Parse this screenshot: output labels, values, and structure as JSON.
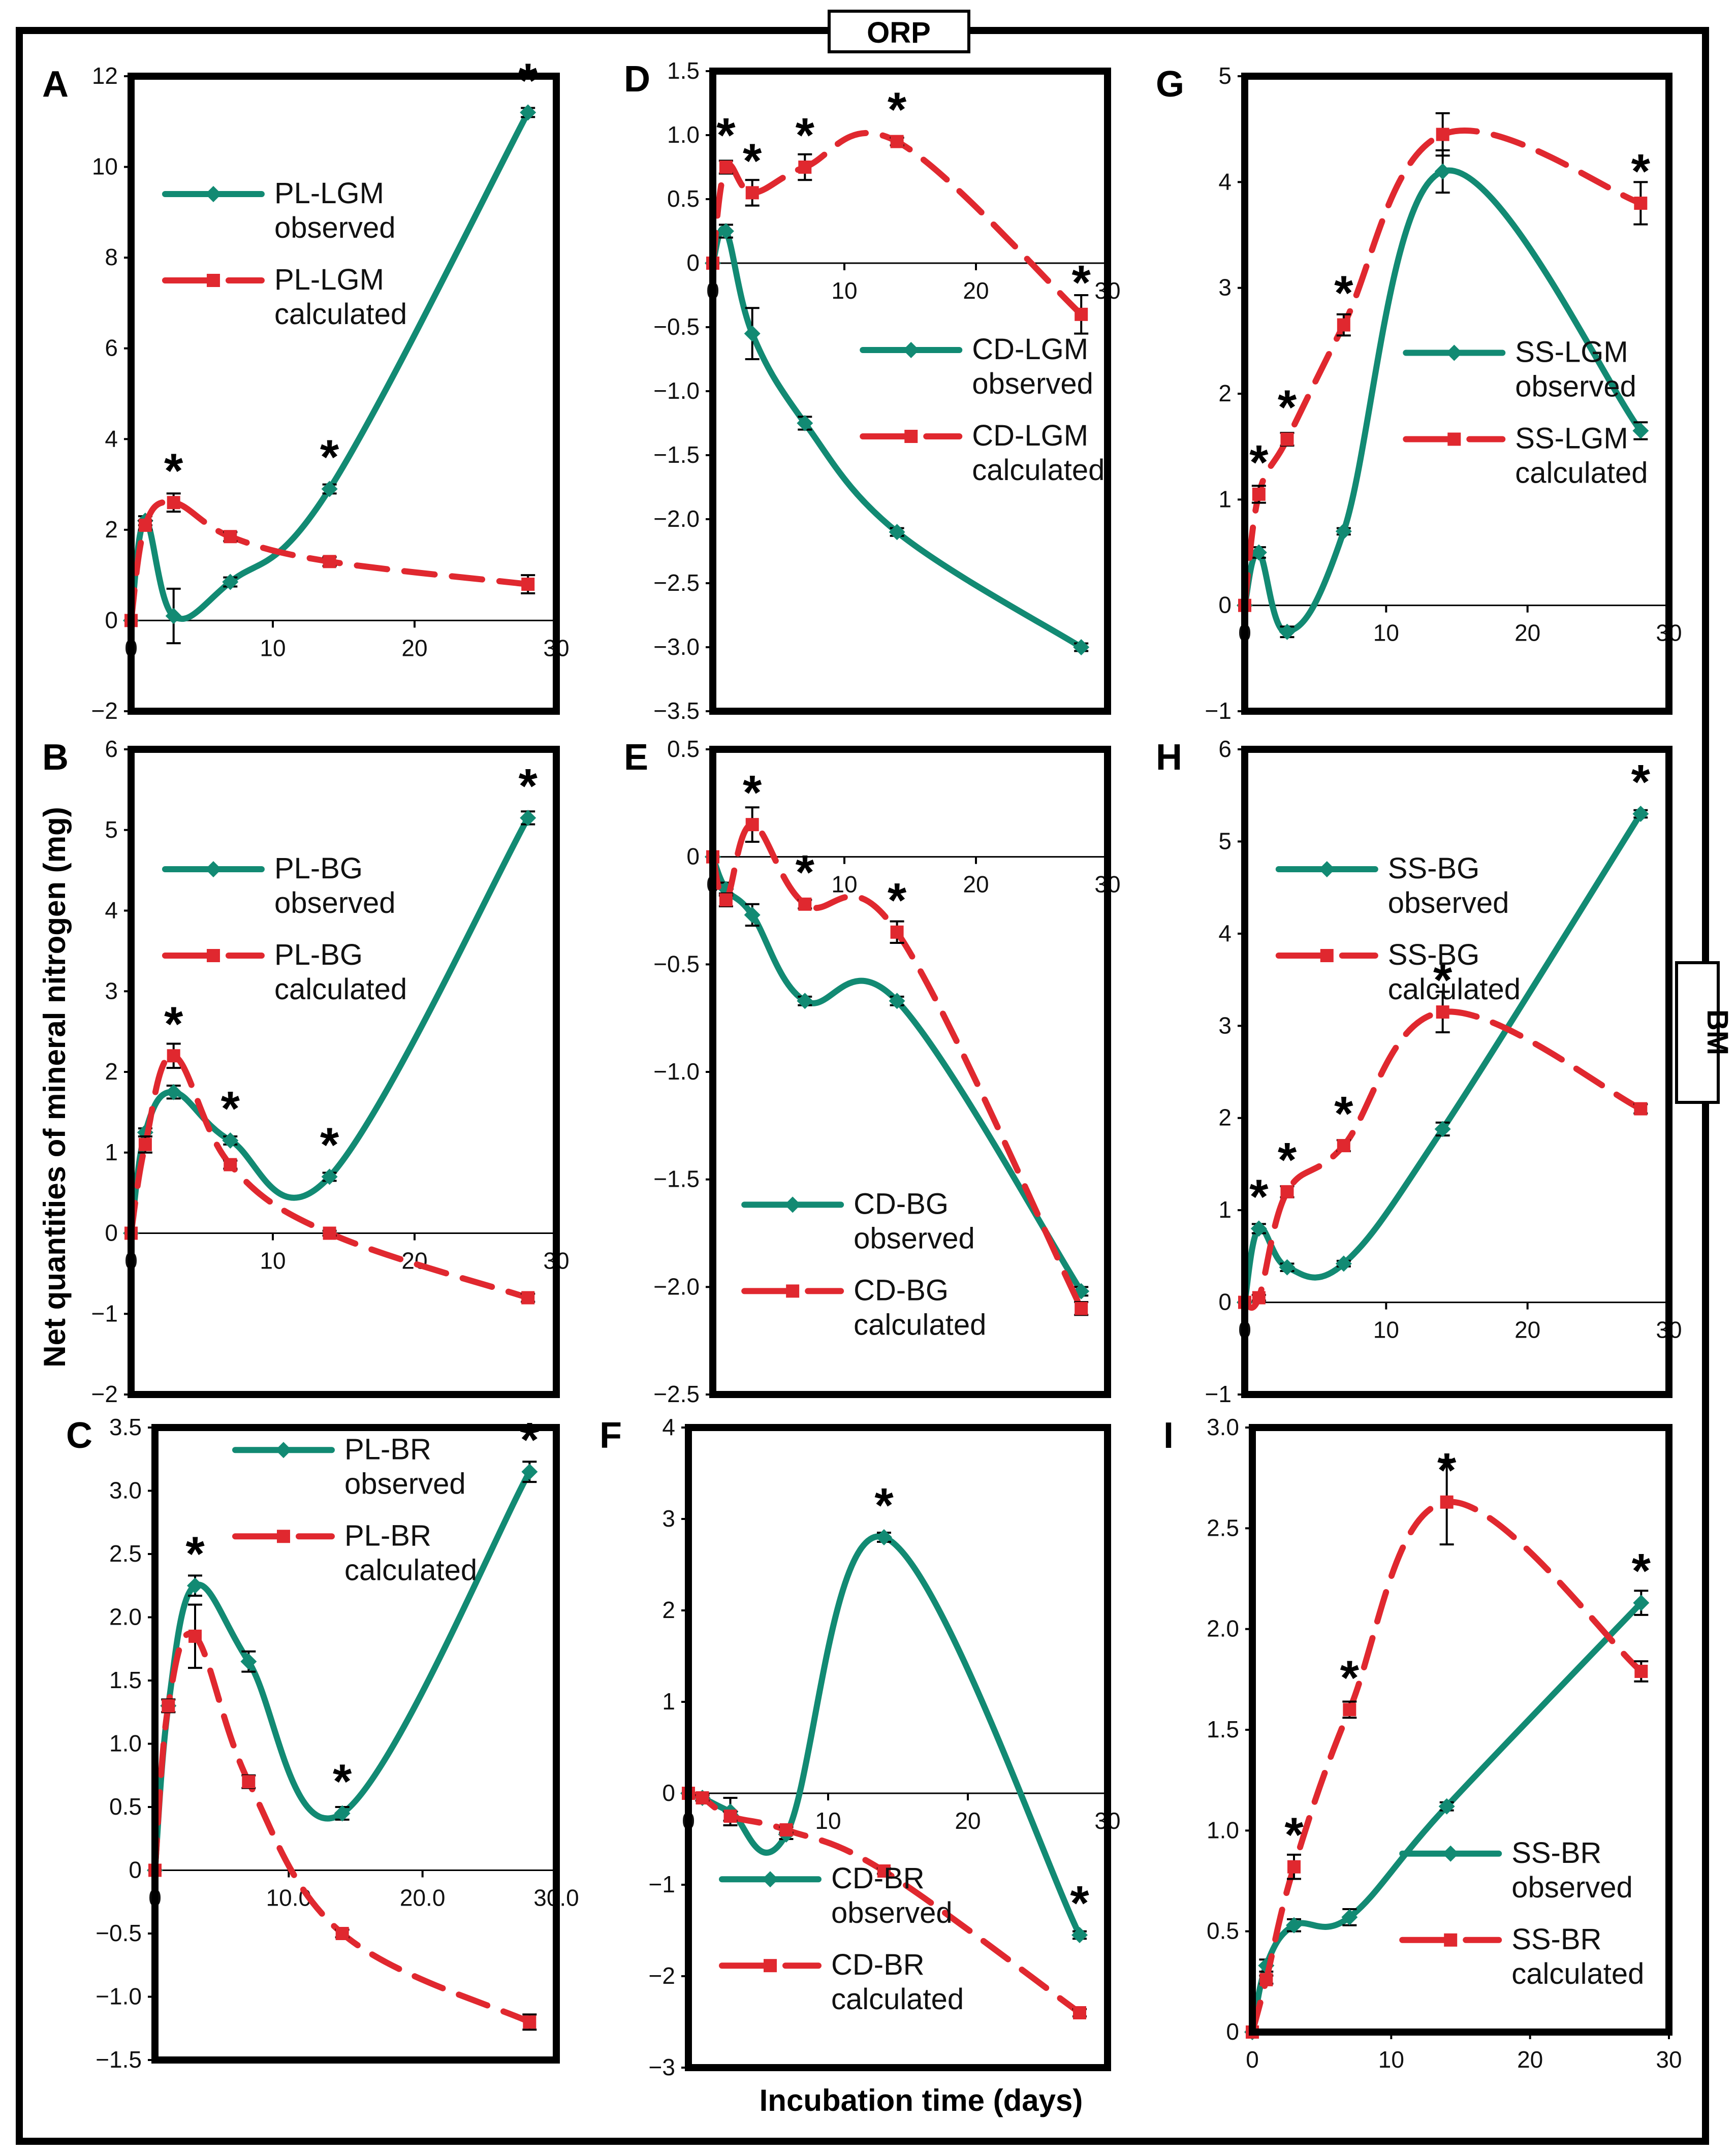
{
  "figure": {
    "top_tag": "ORP",
    "side_tag": "BM",
    "ylabel": "Net quantities of mineral nitrogen (mg)",
    "xlabel": "Incubation time (days)"
  },
  "chart_data": [
    {
      "panel": "A",
      "type": "line",
      "xlim": [
        0,
        30
      ],
      "ylim": [
        -2,
        12
      ],
      "xticks": [
        0,
        10,
        20,
        30
      ],
      "xtick_labels": [
        "0",
        "10",
        "20",
        "30"
      ],
      "yticks": [
        -2,
        0,
        2,
        4,
        6,
        8,
        10,
        12
      ],
      "ytick_labels": [
        "−2",
        "0",
        "2",
        "4",
        "6",
        "8",
        "10",
        "12"
      ],
      "legend_position": "upper-left",
      "series": [
        {
          "name": "PL-LGM observed",
          "label_lines": [
            "PL-LGM",
            "observed"
          ],
          "color": "#128a73",
          "style": "solid",
          "x": [
            0,
            1,
            3,
            7,
            14,
            28
          ],
          "y": [
            0,
            2.2,
            0.1,
            0.85,
            2.9,
            11.2
          ],
          "err": [
            0,
            0.1,
            0.6,
            0.1,
            0.1,
            0.1
          ]
        },
        {
          "name": "PL-LGM calculated",
          "label_lines": [
            "PL-LGM",
            "calculated"
          ],
          "color": "#e0282f",
          "style": "dashed",
          "x": [
            0,
            1,
            3,
            7,
            14,
            28
          ],
          "y": [
            0,
            2.1,
            2.6,
            1.85,
            1.3,
            0.8
          ],
          "err": [
            0,
            0.1,
            0.2,
            0.1,
            0.1,
            0.2
          ]
        }
      ],
      "stars": [
        {
          "x": 3,
          "y": 2.6
        },
        {
          "x": 14,
          "y": 2.9
        },
        {
          "x": 28,
          "y": 11.2
        }
      ]
    },
    {
      "panel": "B",
      "type": "line",
      "xlim": [
        0,
        30
      ],
      "ylim": [
        -2,
        6
      ],
      "xticks": [
        0,
        10,
        20,
        30
      ],
      "xtick_labels": [
        "0",
        "10",
        "20",
        "30"
      ],
      "yticks": [
        -2,
        -1,
        0,
        1,
        2,
        3,
        4,
        5,
        6
      ],
      "ytick_labels": [
        "−2",
        "−1",
        "0",
        "1",
        "2",
        "3",
        "4",
        "5",
        "6"
      ],
      "legend_position": "upper-left",
      "series": [
        {
          "name": "PL-BG observed",
          "label_lines": [
            "PL-BG",
            "observed"
          ],
          "color": "#128a73",
          "style": "solid",
          "x": [
            0,
            1,
            3,
            7,
            14,
            28
          ],
          "y": [
            0,
            1.25,
            1.75,
            1.15,
            0.7,
            5.15
          ],
          "err": [
            0,
            0.05,
            0.08,
            0.05,
            0.05,
            0.08
          ]
        },
        {
          "name": "PL-BG calculated",
          "label_lines": [
            "PL-BG",
            "calculated"
          ],
          "color": "#e0282f",
          "style": "dashed",
          "x": [
            0,
            1,
            3,
            7,
            14,
            28
          ],
          "y": [
            0,
            1.1,
            2.2,
            0.85,
            0,
            -0.8
          ],
          "err": [
            0,
            0.1,
            0.15,
            0.05,
            0.03,
            0.05
          ]
        }
      ],
      "stars": [
        {
          "x": 3,
          "y": 2.2
        },
        {
          "x": 7,
          "y": 1.15
        },
        {
          "x": 14,
          "y": 0.7
        },
        {
          "x": 28,
          "y": 5.15
        }
      ]
    },
    {
      "panel": "C",
      "type": "line",
      "xlim": [
        0,
        30
      ],
      "ylim": [
        -1.5,
        3.5
      ],
      "xticks": [
        0,
        10,
        20,
        30
      ],
      "xtick_labels": [
        "0",
        "10.0",
        "20.0",
        "30.0"
      ],
      "yticks": [
        -1.5,
        -1,
        -0.5,
        0,
        0.5,
        1,
        1.5,
        2,
        2.5,
        3,
        3.5
      ],
      "ytick_labels": [
        "−1.5",
        "−1.0",
        "−0.5",
        "0",
        "0.5",
        "1.0",
        "1.5",
        "2.0",
        "2.5",
        "3.0",
        "3.5"
      ],
      "legend_position": "top-center",
      "series": [
        {
          "name": "PL-BR observed",
          "label_lines": [
            "PL-BR",
            "observed"
          ],
          "color": "#128a73",
          "style": "solid",
          "x": [
            0,
            1,
            3,
            7,
            14,
            28
          ],
          "y": [
            0,
            1.3,
            2.25,
            1.65,
            0.45,
            3.15
          ],
          "err": [
            0,
            0.05,
            0.08,
            0.08,
            0.05,
            0.08
          ]
        },
        {
          "name": "PL-BR calculated",
          "label_lines": [
            "PL-BR",
            "calculated"
          ],
          "color": "#e0282f",
          "style": "dashed",
          "x": [
            0,
            1,
            3,
            7,
            14,
            28
          ],
          "y": [
            0,
            1.3,
            1.85,
            0.7,
            -0.5,
            -1.2
          ],
          "err": [
            0,
            0.05,
            0.25,
            0.05,
            0.03,
            0.06
          ]
        }
      ],
      "stars": [
        {
          "x": 3,
          "y": 2.25
        },
        {
          "x": 14,
          "y": 0.45
        },
        {
          "x": 28,
          "y": 3.15
        }
      ]
    },
    {
      "panel": "D",
      "type": "line",
      "xlim": [
        0,
        30
      ],
      "ylim": [
        -3.5,
        1.5
      ],
      "xticks": [
        0,
        10,
        20,
        30
      ],
      "xtick_labels": [
        "0",
        "10",
        "20",
        "30"
      ],
      "yticks": [
        -3.5,
        -3,
        -2.5,
        -2,
        -1.5,
        -1,
        -0.5,
        0,
        0.5,
        1,
        1.5
      ],
      "ytick_labels": [
        "−3.5",
        "−3.0",
        "−2.5",
        "−2.0",
        "−1.5",
        "−1.0",
        "−0.5",
        "0",
        "0.5",
        "1.0",
        "1.5"
      ],
      "legend_position": "center-right",
      "series": [
        {
          "name": "CD-LGM observed",
          "label_lines": [
            "CD-LGM",
            "observed"
          ],
          "color": "#128a73",
          "style": "solid",
          "x": [
            0,
            1,
            3,
            7,
            14,
            28
          ],
          "y": [
            0,
            0.25,
            -0.55,
            -1.25,
            -2.1,
            -3.0
          ],
          "err": [
            0,
            0.05,
            0.2,
            0.05,
            0.03,
            0.03
          ]
        },
        {
          "name": "CD-LGM calculated",
          "label_lines": [
            "CD-LGM",
            "calculated"
          ],
          "color": "#e0282f",
          "style": "dashed",
          "x": [
            0,
            1,
            3,
            7,
            14,
            28
          ],
          "y": [
            0,
            0.75,
            0.55,
            0.75,
            0.95,
            -0.4
          ],
          "err": [
            0,
            0.05,
            0.1,
            0.1,
            0.03,
            0.15
          ]
        }
      ],
      "stars": [
        {
          "x": 1,
          "y": 0.75
        },
        {
          "x": 3,
          "y": 0.55
        },
        {
          "x": 7,
          "y": 0.75
        },
        {
          "x": 14,
          "y": 0.95
        },
        {
          "x": 28,
          "y": -0.4
        }
      ]
    },
    {
      "panel": "E",
      "type": "line",
      "xlim": [
        0,
        30
      ],
      "ylim": [
        -2.5,
        0.5
      ],
      "xticks": [
        0,
        10,
        20,
        30
      ],
      "xtick_labels": [
        "0",
        "10",
        "20",
        "30"
      ],
      "yticks": [
        -2.5,
        -2,
        -1.5,
        -1,
        -0.5,
        0,
        0.5
      ],
      "ytick_labels": [
        "−2.5",
        "−2.0",
        "−1.5",
        "−1.0",
        "−0.5",
        "0",
        "0.5"
      ],
      "legend_position": "lower-left",
      "series": [
        {
          "name": "CD-BG observed",
          "label_lines": [
            "CD-BG",
            "observed"
          ],
          "color": "#128a73",
          "style": "solid",
          "x": [
            0,
            1,
            3,
            7,
            14,
            28
          ],
          "y": [
            0,
            -0.15,
            -0.27,
            -0.67,
            -0.67,
            -2.02
          ],
          "err": [
            0,
            0.03,
            0.05,
            0.02,
            0.02,
            0.02
          ]
        },
        {
          "name": "CD-BG calculated",
          "label_lines": [
            "CD-BG",
            "calculated"
          ],
          "color": "#e0282f",
          "style": "dashed",
          "x": [
            0,
            1,
            3,
            7,
            14,
            28
          ],
          "y": [
            0,
            -0.2,
            0.15,
            -0.22,
            -0.35,
            -2.1
          ],
          "err": [
            0,
            0.03,
            0.08,
            0.02,
            0.05,
            0.03
          ]
        }
      ],
      "stars": [
        {
          "x": 3,
          "y": 0.15
        },
        {
          "x": 7,
          "y": -0.22
        },
        {
          "x": 14,
          "y": -0.35
        }
      ]
    },
    {
      "panel": "F",
      "type": "line",
      "xlim": [
        0,
        30
      ],
      "ylim": [
        -3,
        4
      ],
      "xticks": [
        0,
        10,
        20,
        30
      ],
      "xtick_labels": [
        "0",
        "10",
        "20",
        "30"
      ],
      "yticks": [
        -3,
        -2,
        -1,
        0,
        1,
        2,
        3,
        4
      ],
      "ytick_labels": [
        "−3",
        "−2",
        "−1",
        "0",
        "1",
        "2",
        "3",
        "4"
      ],
      "legend_position": "lower-left",
      "series": [
        {
          "name": "CD-BR observed",
          "label_lines": [
            "CD-BR",
            "observed"
          ],
          "color": "#128a73",
          "style": "solid",
          "x": [
            0,
            1,
            3,
            7,
            14,
            28
          ],
          "y": [
            0,
            -0.05,
            -0.2,
            -0.45,
            2.8,
            -1.55
          ],
          "err": [
            0,
            0.03,
            0.15,
            0.05,
            0.05,
            0.04
          ]
        },
        {
          "name": "CD-BR calculated",
          "label_lines": [
            "CD-BR",
            "calculated"
          ],
          "color": "#e0282f",
          "style": "dashed",
          "x": [
            0,
            1,
            3,
            7,
            14,
            28
          ],
          "y": [
            0,
            -0.05,
            -0.25,
            -0.4,
            -0.85,
            -2.4
          ],
          "err": [
            0,
            0.03,
            0.05,
            0.03,
            0.03,
            0.04
          ]
        }
      ],
      "stars": [
        {
          "x": 14,
          "y": 2.8
        },
        {
          "x": 28,
          "y": -1.55
        }
      ]
    },
    {
      "panel": "G",
      "type": "line",
      "xlim": [
        0,
        30
      ],
      "ylim": [
        -1,
        5
      ],
      "xticks": [
        0,
        10,
        20,
        30
      ],
      "xtick_labels": [
        "0",
        "10",
        "20",
        "30"
      ],
      "yticks": [
        -1,
        0,
        1,
        2,
        3,
        4,
        5
      ],
      "ytick_labels": [
        "−1",
        "0",
        "1",
        "2",
        "3",
        "4",
        "5"
      ],
      "legend_position": "center-right",
      "series": [
        {
          "name": "SS-LGM observed",
          "label_lines": [
            "SS-LGM",
            "observed"
          ],
          "color": "#128a73",
          "style": "solid",
          "x": [
            0,
            1,
            3,
            7,
            14,
            28
          ],
          "y": [
            0,
            0.5,
            -0.25,
            0.7,
            4.1,
            1.65
          ],
          "err": [
            0,
            0.05,
            0.05,
            0.03,
            0.2,
            0.08
          ]
        },
        {
          "name": "SS-LGM calculated",
          "label_lines": [
            "SS-LGM",
            "calculated"
          ],
          "color": "#e0282f",
          "style": "dashed",
          "x": [
            0,
            1,
            3,
            7,
            14,
            28
          ],
          "y": [
            0,
            1.05,
            1.57,
            2.65,
            4.45,
            3.8
          ],
          "err": [
            0,
            0.08,
            0.06,
            0.1,
            0.2,
            0.2
          ]
        }
      ],
      "stars": [
        {
          "x": 1,
          "y": 1.05
        },
        {
          "x": 3,
          "y": 1.57
        },
        {
          "x": 7,
          "y": 2.65
        },
        {
          "x": 28,
          "y": 3.8
        }
      ]
    },
    {
      "panel": "H",
      "type": "line",
      "xlim": [
        0,
        30
      ],
      "ylim": [
        -1,
        6
      ],
      "xticks": [
        0,
        10,
        20,
        30
      ],
      "xtick_labels": [
        "0",
        "10",
        "20",
        "30"
      ],
      "yticks": [
        -1,
        0,
        1,
        2,
        3,
        4,
        5,
        6
      ],
      "ytick_labels": [
        "−1",
        "0",
        "1",
        "2",
        "3",
        "4",
        "5",
        "6"
      ],
      "legend_position": "upper-left",
      "series": [
        {
          "name": "SS-BG observed",
          "label_lines": [
            "SS-BG",
            "observed"
          ],
          "color": "#128a73",
          "style": "solid",
          "x": [
            0,
            1,
            3,
            7,
            14,
            28
          ],
          "y": [
            0,
            0.8,
            0.38,
            0.42,
            1.88,
            5.3
          ],
          "err": [
            0,
            0.05,
            0.04,
            0.03,
            0.07,
            0.04
          ]
        },
        {
          "name": "SS-BG calculated",
          "label_lines": [
            "SS-BG",
            "calculated"
          ],
          "color": "#e0282f",
          "style": "dashed",
          "x": [
            0,
            1,
            3,
            7,
            14,
            28
          ],
          "y": [
            0,
            0.05,
            1.2,
            1.7,
            3.15,
            2.1
          ],
          "err": [
            0,
            0.03,
            0.06,
            0.06,
            0.22,
            0.05
          ]
        }
      ],
      "stars": [
        {
          "x": 1,
          "y": 0.8
        },
        {
          "x": 3,
          "y": 1.2
        },
        {
          "x": 7,
          "y": 1.7
        },
        {
          "x": 14,
          "y": 3.15
        },
        {
          "x": 28,
          "y": 5.3
        }
      ]
    },
    {
      "panel": "I",
      "type": "line",
      "xlim": [
        0,
        30
      ],
      "ylim": [
        0,
        3
      ],
      "xticks": [
        0,
        10,
        20,
        30
      ],
      "xtick_labels": [
        "0",
        "10",
        "20",
        "30"
      ],
      "yticks": [
        0,
        0.5,
        1,
        1.5,
        2,
        2.5,
        3
      ],
      "ytick_labels": [
        "0",
        "0.5",
        "1.0",
        "1.5",
        "2.0",
        "2.5",
        "3.0"
      ],
      "legend_position": "lower-right",
      "series": [
        {
          "name": "SS-BR observed",
          "label_lines": [
            "SS-BR",
            "observed"
          ],
          "color": "#128a73",
          "style": "solid",
          "x": [
            0,
            1,
            3,
            7,
            14,
            28
          ],
          "y": [
            0,
            0.33,
            0.53,
            0.57,
            1.12,
            2.13
          ],
          "err": [
            0,
            0.03,
            0.03,
            0.04,
            0.02,
            0.06
          ]
        },
        {
          "name": "SS-BR calculated",
          "label_lines": [
            "SS-BR",
            "calculated"
          ],
          "color": "#e0282f",
          "style": "dashed",
          "x": [
            0,
            1,
            3,
            7,
            14,
            28
          ],
          "y": [
            0,
            0.26,
            0.82,
            1.6,
            2.63,
            1.79
          ],
          "err": [
            0,
            0.02,
            0.06,
            0.04,
            0.21,
            0.05
          ]
        }
      ],
      "stars": [
        {
          "x": 3,
          "y": 0.82
        },
        {
          "x": 7,
          "y": 1.6
        },
        {
          "x": 14,
          "y": 2.63
        },
        {
          "x": 28,
          "y": 2.13
        }
      ]
    }
  ]
}
